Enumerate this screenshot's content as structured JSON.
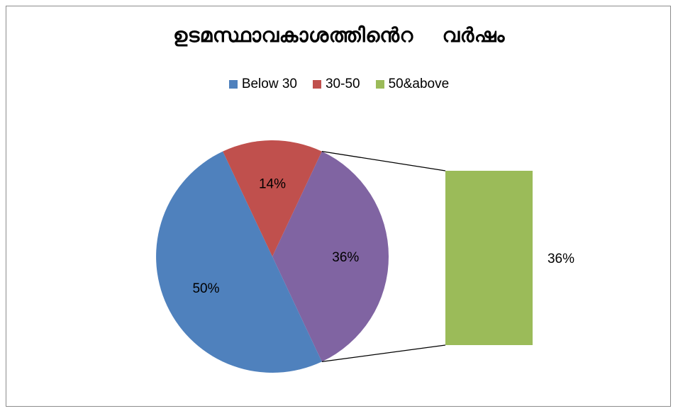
{
  "chart_data": {
    "type": "pie",
    "title": "ഉടമസ്ഥാവകാശത്തിൻെറ    വർഷം",
    "categories": [
      "Below 30",
      "30-50",
      "50&above"
    ],
    "values": [
      50,
      14,
      36
    ],
    "value_labels": [
      "50%",
      "14%",
      "36%"
    ],
    "detail_bar": {
      "value": 36,
      "label": "36%"
    },
    "legend_position": "top",
    "colors": {
      "Below 30": "#4f81bd",
      "30-50": "#c0504d",
      "pie_remainder": "#8064a2",
      "50&above": "#9bbb59"
    }
  }
}
